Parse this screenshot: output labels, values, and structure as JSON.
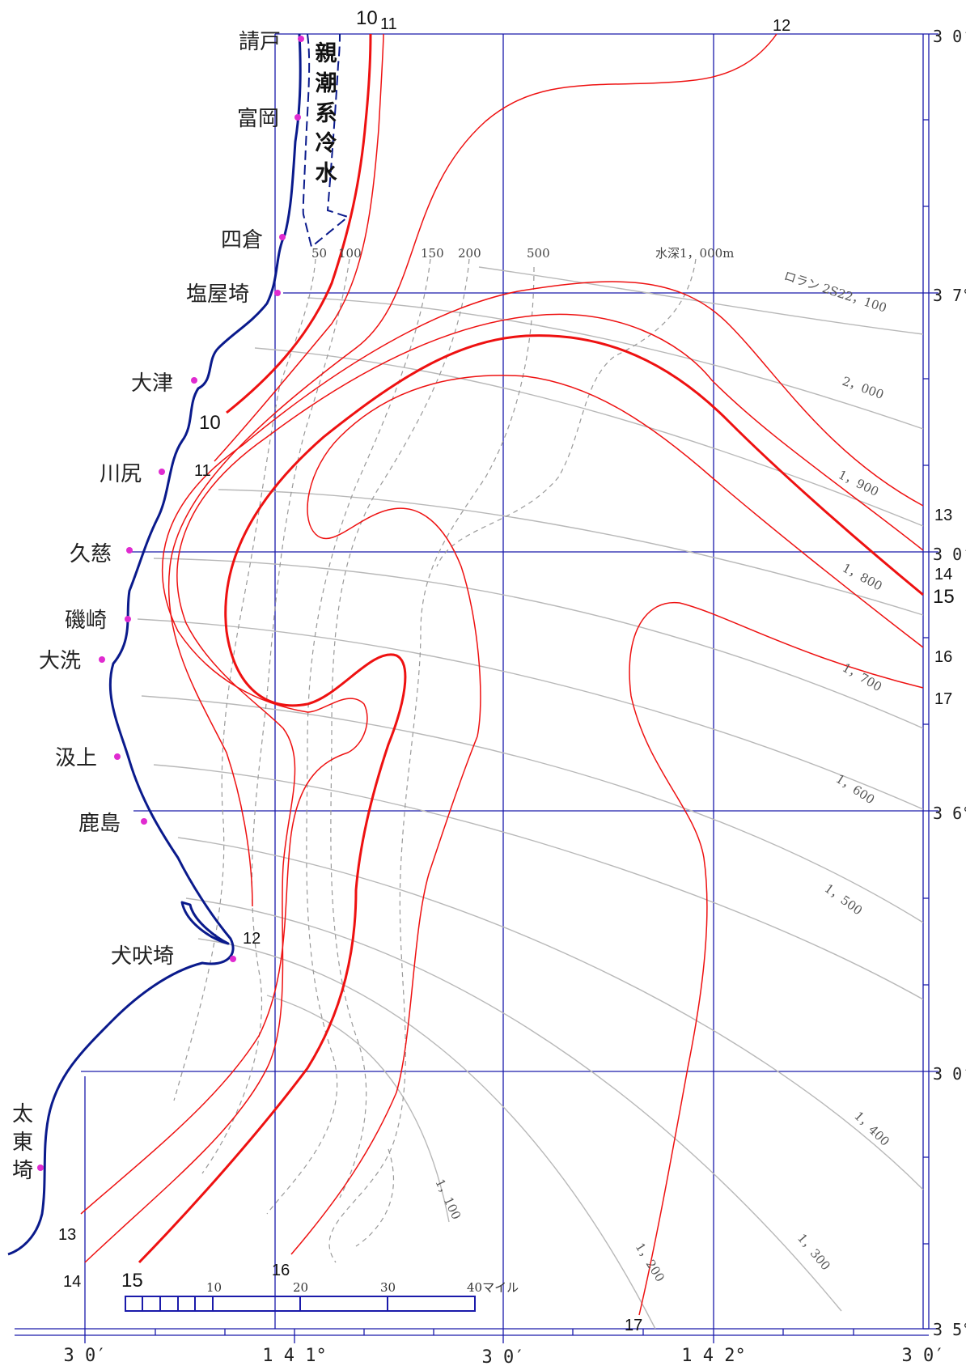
{
  "places": [
    {
      "name": "請戸"
    },
    {
      "name": "富岡"
    },
    {
      "name": "四倉"
    },
    {
      "name": "塩屋埼"
    },
    {
      "name": "大津"
    },
    {
      "name": "川尻"
    },
    {
      "name": "久慈"
    },
    {
      "name": "磯崎"
    },
    {
      "name": "大洗"
    },
    {
      "name": "汲上"
    },
    {
      "name": "鹿島"
    },
    {
      "name": "犬吠埼"
    },
    {
      "name": "太"
    },
    {
      "name": "東"
    },
    {
      "name": "埼"
    }
  ],
  "cold_water_label": [
    "親",
    "潮",
    "系",
    "冷",
    "水"
  ],
  "isotherms": [
    "10",
    "11",
    "12",
    "10",
    "11",
    "12",
    "13",
    "14",
    "15",
    "16",
    "17",
    "13",
    "14",
    "15",
    "16",
    "17"
  ],
  "depth_labels": [
    "50",
    "100",
    "150",
    "200",
    "500",
    "水深1，000m"
  ],
  "loran_labels": [
    "ロラン 2S22，100",
    "2，000",
    "1，900",
    "1，800",
    "1，700",
    "1，600",
    "1，500",
    "1，400",
    "1，300",
    "1，200",
    "1，100"
  ],
  "lat_labels": [
    "3 0′",
    "3 7°",
    "3 0′",
    "3 6°",
    "3 0′",
    "3 5°"
  ],
  "lon_labels": [
    "3 0′",
    "1 4 1°",
    "3 0′",
    "1 4 2°",
    "3 0′"
  ],
  "scale": {
    "ticks": [
      "10",
      "20",
      "30"
    ],
    "end": "40マイル"
  },
  "colors": {
    "coast": "#0a1a8c",
    "grid": "#1a1aaa",
    "isotherm": "#ee1111",
    "loran": "#b8b8b8",
    "depth": "#999999",
    "place_marker": "#e02bd0"
  }
}
